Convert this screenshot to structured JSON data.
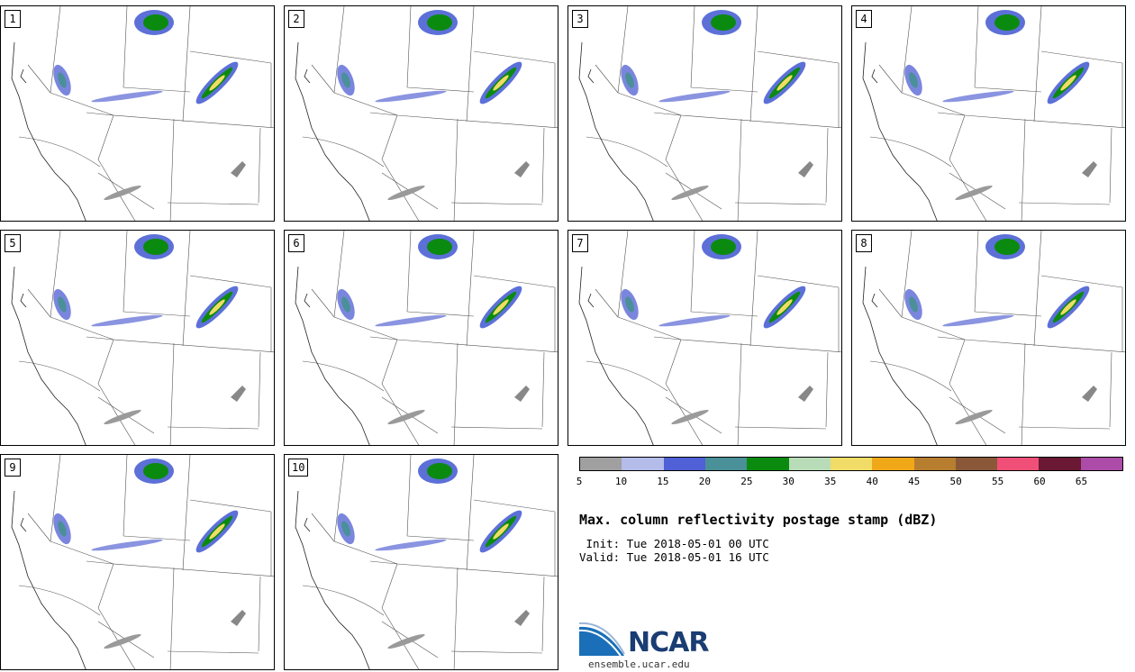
{
  "panels": [
    "1",
    "2",
    "3",
    "4",
    "5",
    "6",
    "7",
    "8",
    "9",
    "10"
  ],
  "colorbar": {
    "colors": [
      "#a0a0a0",
      "#b4bcea",
      "#5060d6",
      "#4a9098",
      "#0b8a10",
      "#b8dcb8",
      "#f0dc66",
      "#f0a818",
      "#b87e30",
      "#8a5838",
      "#f05078",
      "#6a1834",
      "#ac4ca8"
    ],
    "ticks": [
      "5",
      "10",
      "15",
      "20",
      "25",
      "30",
      "35",
      "40",
      "45",
      "50",
      "55",
      "60",
      "65"
    ]
  },
  "title": "Max. column reflectivity postage stamp (dBZ)",
  "init": " Init: Tue 2018-05-01 00 UTC",
  "valid": "Valid: Tue 2018-05-01 16 UTC",
  "logo": {
    "text": "NCAR",
    "url": "ensemble.ucar.edu"
  }
}
